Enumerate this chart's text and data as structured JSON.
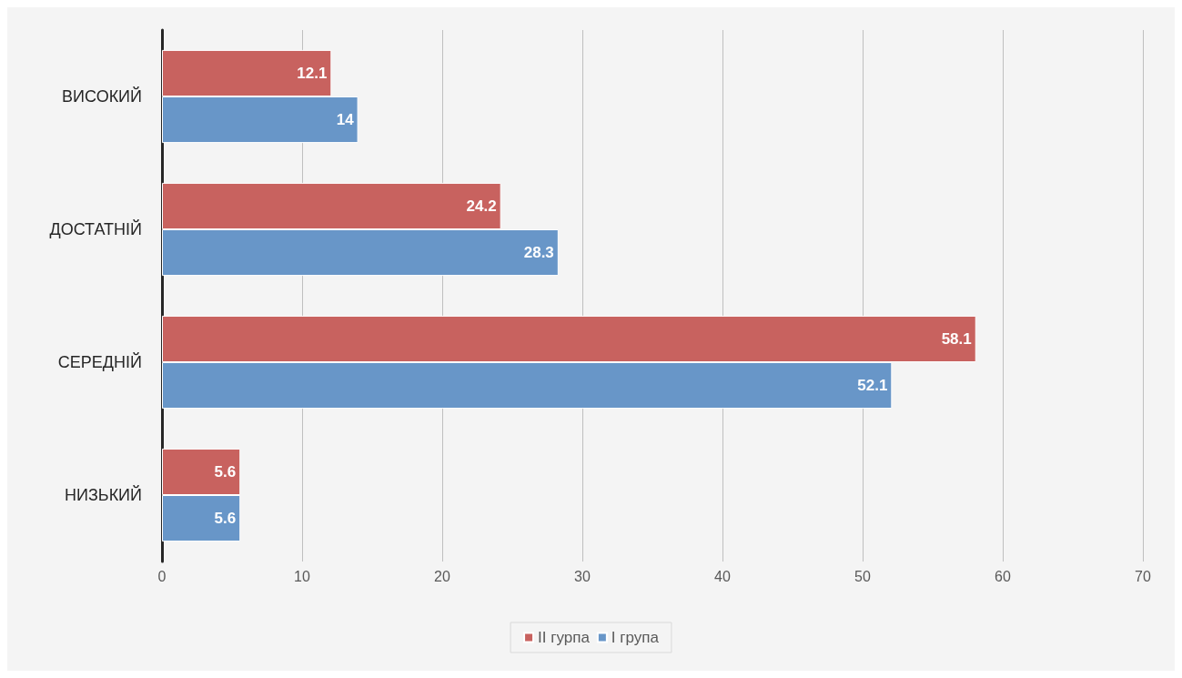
{
  "chart_data": {
    "type": "bar",
    "orientation": "horizontal",
    "categories": [
      "ВИСОКИЙ",
      "ДОСТАТНІЙ",
      "СЕРЕДНІЙ",
      "НИЗЬКИЙ"
    ],
    "series": [
      {
        "name": "II гурпа",
        "color": "#c8625f",
        "values": [
          12.1,
          24.2,
          58.1,
          5.6
        ]
      },
      {
        "name": "I група",
        "color": "#6896c8",
        "values": [
          14,
          28.3,
          52.1,
          5.6
        ]
      }
    ],
    "xlim": [
      0,
      70
    ],
    "xticks": [
      0,
      10,
      20,
      30,
      40,
      50,
      60,
      70
    ],
    "grid": "x",
    "legend": "bottom",
    "data_labels": true
  }
}
